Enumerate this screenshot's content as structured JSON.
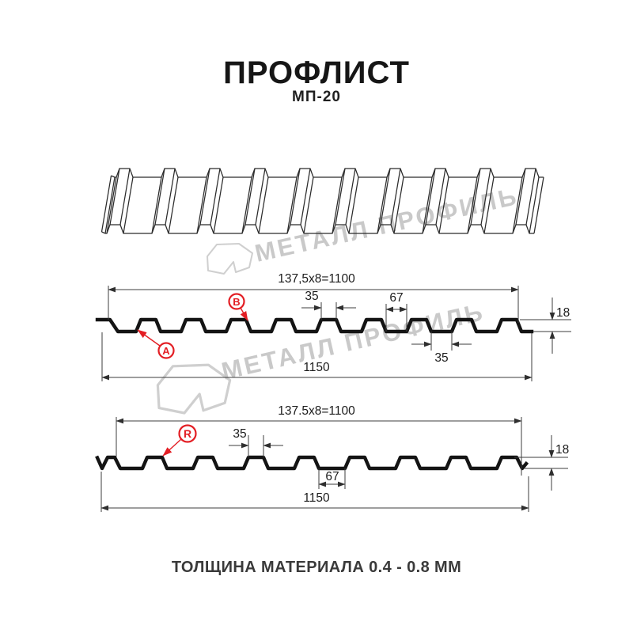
{
  "header": {
    "title": "ПРОФЛИСТ",
    "subtitle": "МП-20"
  },
  "watermark": {
    "text": "МЕТАЛЛ ПРОФИЛЬ"
  },
  "diagram_top": {
    "labels": {
      "module_width": "137,5x8=1100",
      "rib_top_width": "35",
      "valley_width": "67",
      "profile_height": "18",
      "valley_width_bottom": "35",
      "total_width": "1150"
    },
    "markers": {
      "a": "A",
      "b": "B"
    }
  },
  "diagram_bottom": {
    "labels": {
      "module_width": "137.5x8=1100",
      "rib_top_width": "35",
      "valley_width": "67",
      "profile_height": "18",
      "total_width": "1150"
    },
    "markers": {
      "r": "R"
    }
  },
  "footer": {
    "note": "ТОЛЩИНА МАТЕРИАЛА 0.4 - 0.8 ММ"
  },
  "colors": {
    "accent": "#e31e24",
    "ink": "#141414",
    "dim_line": "#3c3c3c",
    "watermark": "#c9c9c9"
  }
}
